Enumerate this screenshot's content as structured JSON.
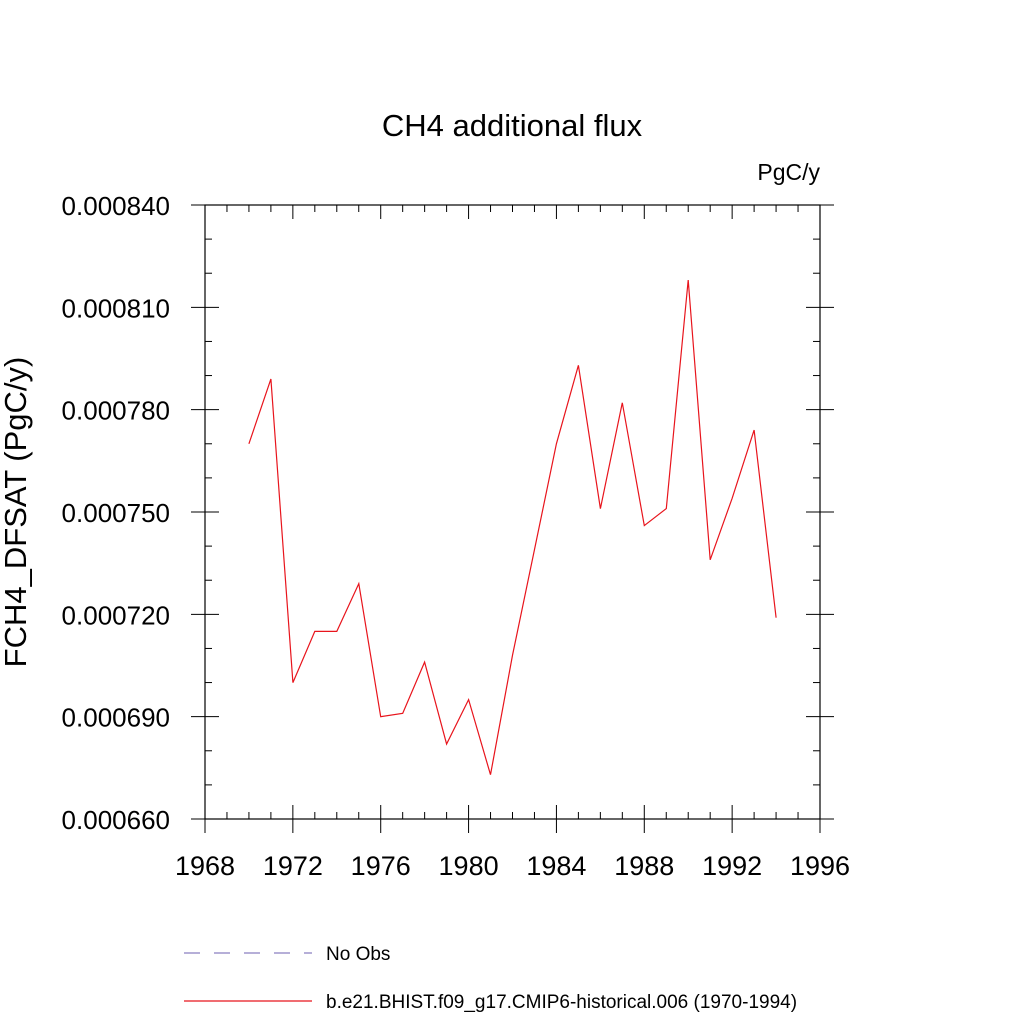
{
  "chart_data": {
    "type": "line",
    "title": "CH4 additional flux",
    "units_label": "PgC/y",
    "ylabel": "FCH4_DFSAT  (PgC/y)",
    "xlabel": "",
    "xlim": [
      1968,
      1996
    ],
    "ylim": [
      0.00066,
      0.00084
    ],
    "x_ticks": [
      1968,
      1972,
      1976,
      1980,
      1984,
      1988,
      1992,
      1996
    ],
    "x_tick_labels": [
      "1968",
      "1972",
      "1976",
      "1980",
      "1984",
      "1988",
      "1992",
      "1996"
    ],
    "y_ticks": [
      0.00066,
      0.00069,
      0.00072,
      0.00075,
      0.00078,
      0.00081,
      0.00084
    ],
    "y_tick_labels": [
      "0.000660",
      "0.000690",
      "0.000720",
      "0.000750",
      "0.000780",
      "0.000810",
      "0.000840"
    ],
    "grid": false,
    "series": [
      {
        "name": "b.e21.BHIST.f09_g17.CMIP6-historical.006 (1970-1994)",
        "color": "#e8141c",
        "x": [
          1970,
          1971,
          1972,
          1973,
          1974,
          1975,
          1976,
          1977,
          1978,
          1979,
          1980,
          1981,
          1982,
          1983,
          1984,
          1985,
          1986,
          1987,
          1988,
          1989,
          1990,
          1991,
          1992,
          1993,
          1994
        ],
        "y": [
          0.00077,
          0.000789,
          0.0007,
          0.000715,
          0.000715,
          0.000729,
          0.00069,
          0.000691,
          0.000706,
          0.000682,
          0.000695,
          0.000673,
          0.000708,
          0.000739,
          0.00077,
          0.000793,
          0.000751,
          0.000782,
          0.000746,
          0.000751,
          0.000818,
          0.000736,
          0.000754,
          0.000774,
          0.000719
        ]
      }
    ],
    "legend": {
      "placement": "bottom",
      "entries": [
        {
          "label": "No Obs",
          "style": "dashed",
          "color": "#8a7fc0"
        },
        {
          "label": "b.e21.BHIST.f09_g17.CMIP6-historical.006 (1970-1994)",
          "style": "solid",
          "color": "#e8141c"
        }
      ]
    }
  }
}
